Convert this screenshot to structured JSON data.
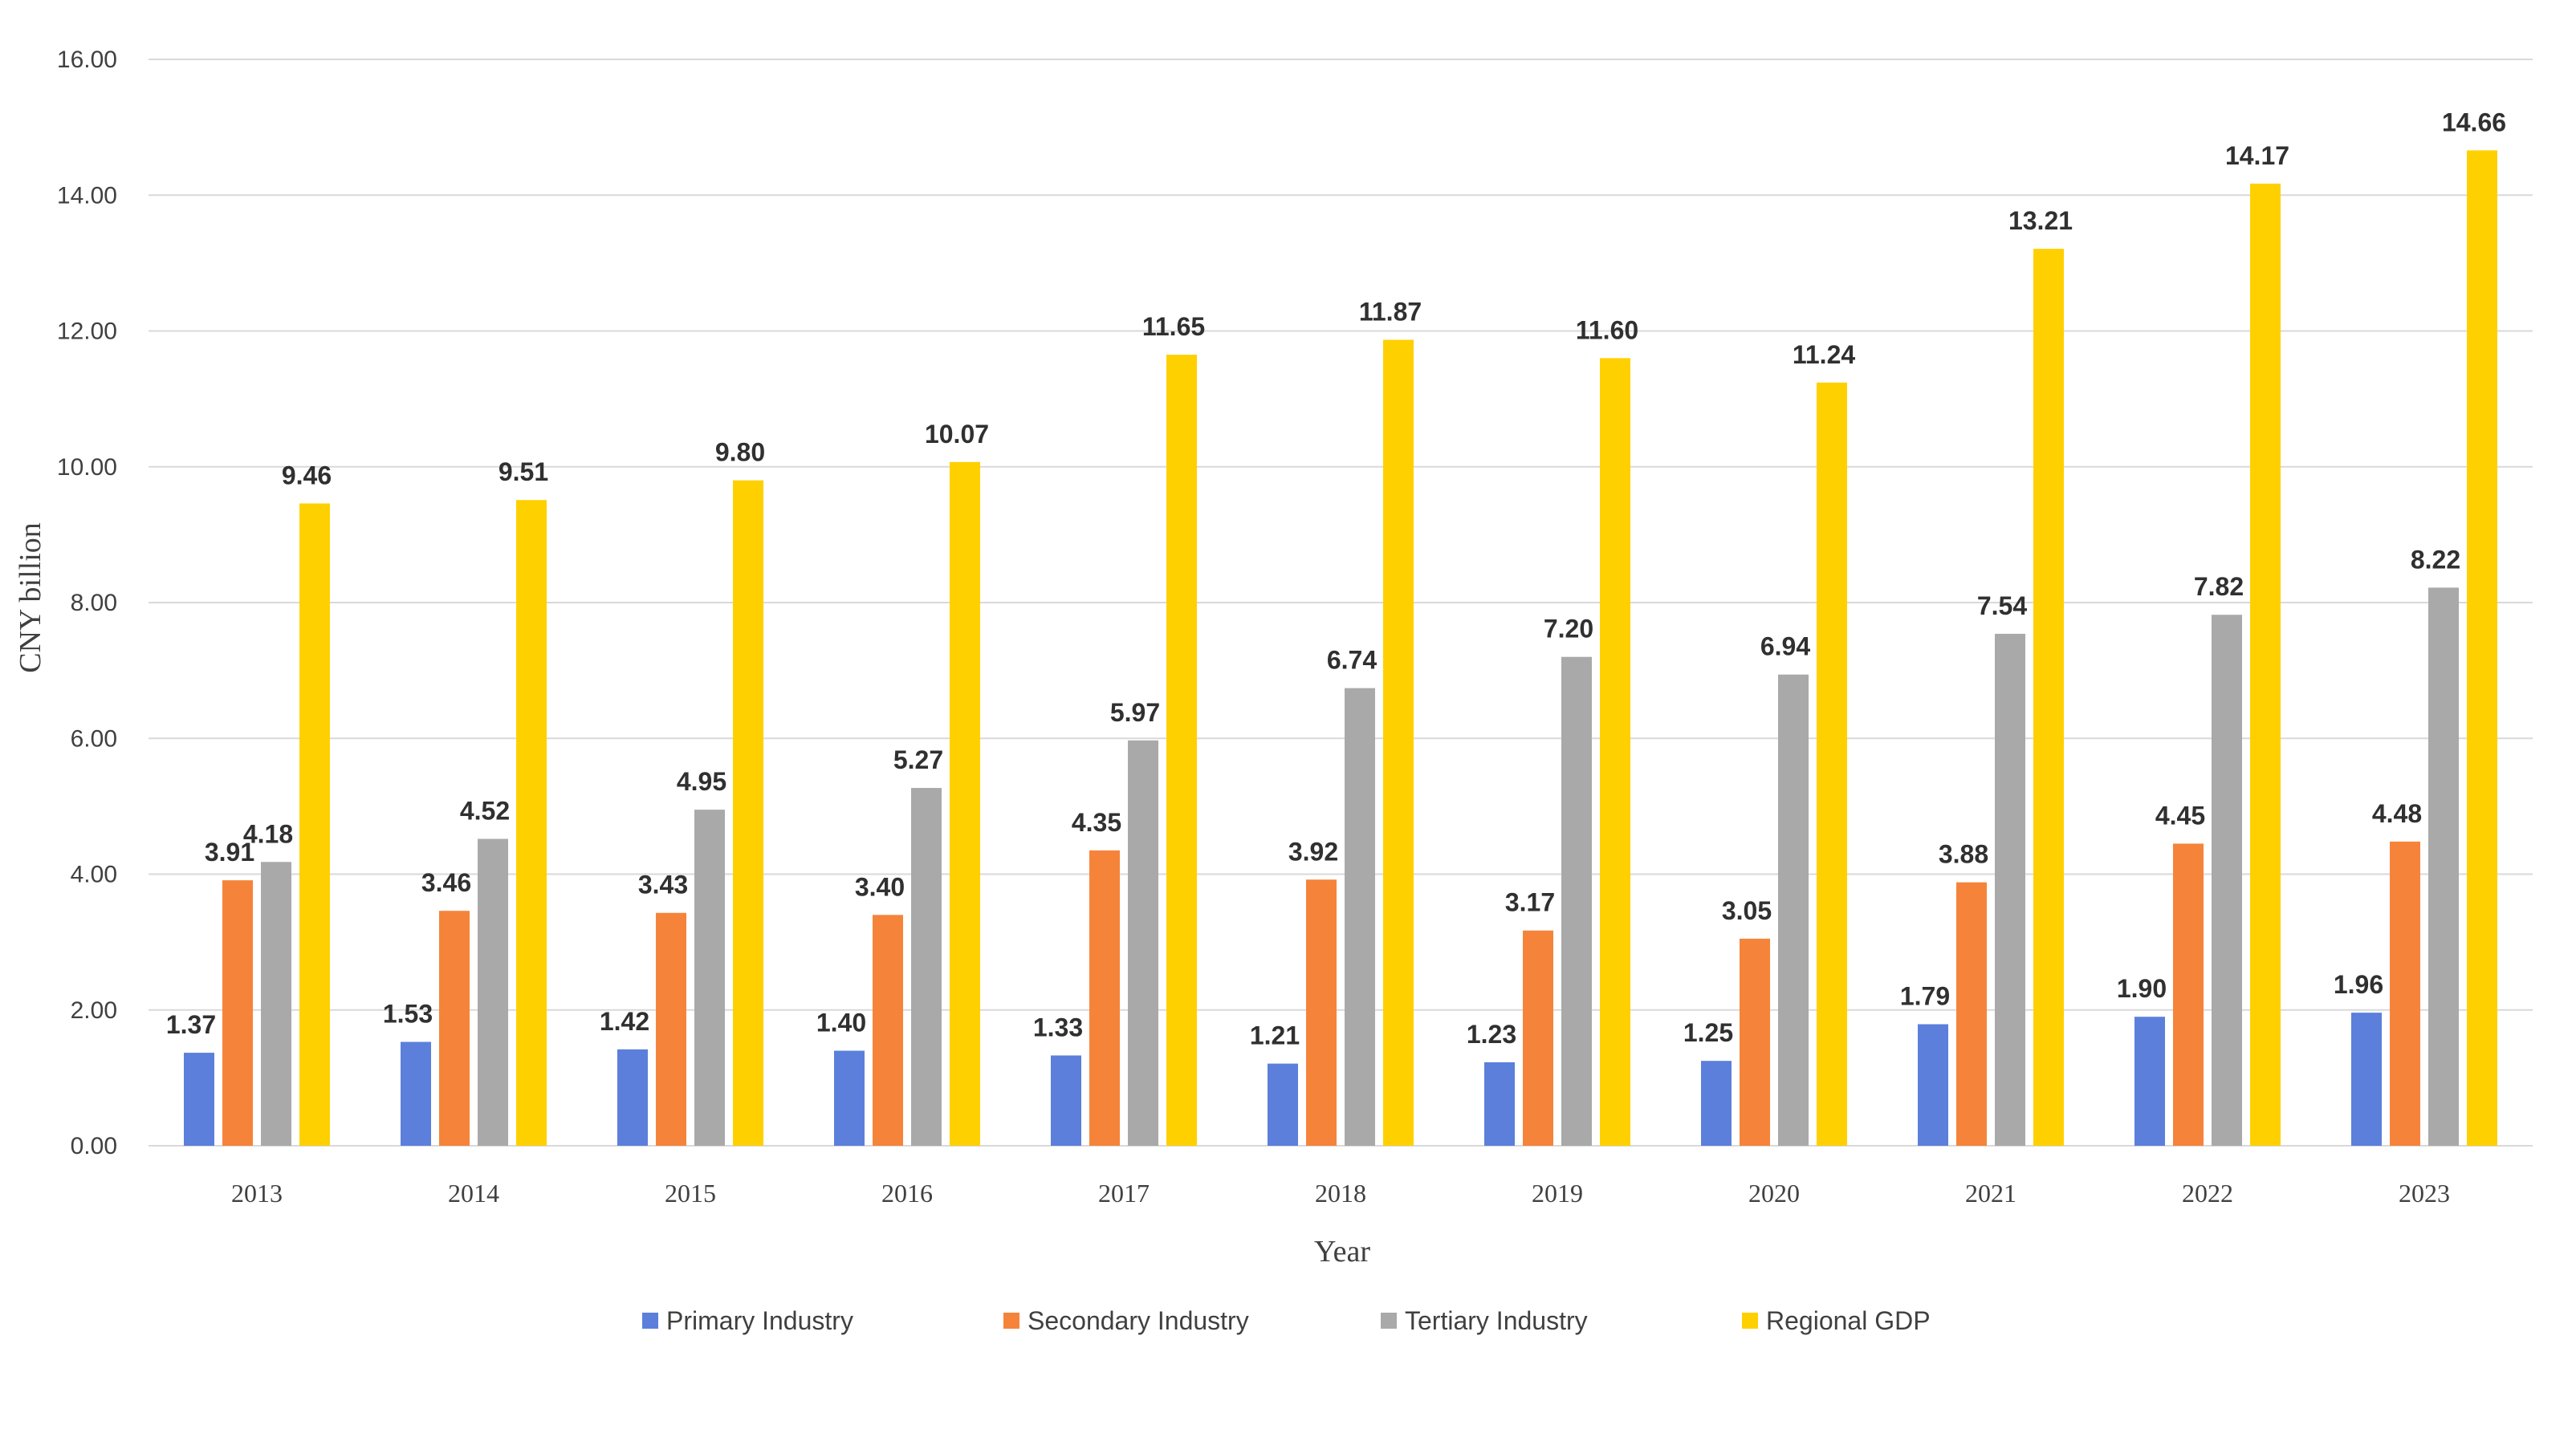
{
  "chart_data": {
    "type": "bar",
    "title": "",
    "xlabel": "Year",
    "ylabel": "CNY billion",
    "ylim": [
      0,
      16
    ],
    "yticks": [
      "0.00",
      "2.00",
      "4.00",
      "6.00",
      "8.00",
      "10.00",
      "12.00",
      "14.00",
      "16.00"
    ],
    "grid": true,
    "legend_position": "bottom",
    "categories": [
      "2013",
      "2014",
      "2015",
      "2016",
      "2017",
      "2018",
      "2019",
      "2020",
      "2021",
      "2022",
      "2023"
    ],
    "series": [
      {
        "name": "Primary Industry",
        "color": "#5b7fdb",
        "values": [
          1.37,
          1.53,
          1.42,
          1.4,
          1.33,
          1.21,
          1.23,
          1.25,
          1.79,
          1.9,
          1.96
        ]
      },
      {
        "name": "Secondary Industry",
        "color": "#f5843a",
        "values": [
          3.91,
          3.46,
          3.43,
          3.4,
          4.35,
          3.92,
          3.17,
          3.05,
          3.88,
          4.45,
          4.48
        ]
      },
      {
        "name": "Tertiary Industry",
        "color": "#a9a9a9",
        "values": [
          4.18,
          4.52,
          4.95,
          5.27,
          5.97,
          6.74,
          7.2,
          6.94,
          7.54,
          7.82,
          8.22
        ]
      },
      {
        "name": "Regional GDP",
        "color": "#ffd000",
        "values": [
          9.46,
          9.51,
          9.8,
          10.07,
          11.65,
          11.87,
          11.6,
          11.24,
          13.21,
          14.17,
          14.66
        ]
      }
    ]
  }
}
